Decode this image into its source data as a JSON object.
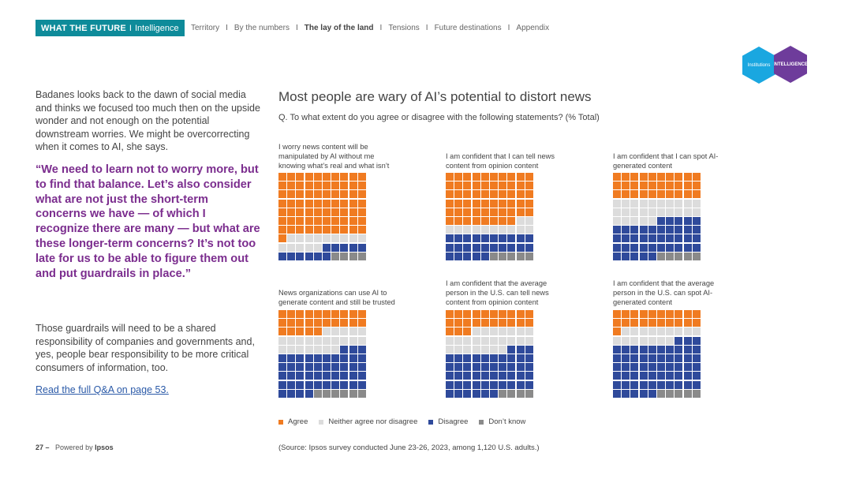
{
  "header": {
    "brand_bold": "WHAT THE FUTURE",
    "brand_sep": "I",
    "brand_sub": "Intelligence",
    "nav": [
      {
        "label": "Territory",
        "active": false
      },
      {
        "label": "By the numbers",
        "active": false
      },
      {
        "label": "The lay of the land",
        "active": true
      },
      {
        "label": "Tensions",
        "active": false
      },
      {
        "label": "Future destinations",
        "active": false
      },
      {
        "label": "Appendix",
        "active": false
      }
    ],
    "nav_sep": "I",
    "hex_left": "Institutions",
    "hex_right": "INTELLIGENCE"
  },
  "left": {
    "intro": "Badanes looks back to the dawn of social media and thinks we focused too much then on the upside wonder and not enough on the potential downstream worries. We might be overcorrecting when it comes to AI, she says.",
    "quote": "“We need to learn not to worry more, but to find that balance. Let’s also consider what are not just the short-term concerns we have — of which I recognize there are many — but what are these longer-term concerns? It’s not too late for us to be able to figure them out and put guardrails in place.”",
    "outro": "Those guardrails will need to be a shared responsibility of companies and governments and, yes, people bear responsibility to be more critical consumers of information, too.",
    "link": "Read the full Q&A on page 53."
  },
  "footer": {
    "page": "27 –",
    "powered": "Powered by",
    "brand": "Ipsos",
    "source": "(Source: Ipsos survey conducted June 23-26, 2023, among 1,120 U.S. adults.)"
  },
  "colors": {
    "agree": "#f07b21",
    "neither": "#dcdcdc",
    "disagree": "#2f4a9b",
    "dontknow": "#8a8a8a",
    "brand": "#0e8b9a",
    "quote": "#7b2d8e"
  },
  "chart_data": {
    "type": "waffle",
    "title": "Most people are wary of AI’s potential to distort news",
    "question": "Q. To what extent do you agree or disagree with the following statements? (% Total)",
    "legend": [
      "Agree",
      "Neither agree nor disagree",
      "Disagree",
      "Don’t know"
    ],
    "units": "percent of respondents (each square = 1%)",
    "panels": [
      {
        "label": "I worry news content will be manipulated by AI without me knowing what’s real and what isn’t",
        "values": [
          71,
          14,
          11,
          4
        ]
      },
      {
        "label": "I am confident that I can tell news content from opinion content",
        "values": [
          58,
          12,
          25,
          5
        ]
      },
      {
        "label": "I am confident that I can spot AI-generated content",
        "values": [
          30,
          25,
          40,
          5
        ]
      },
      {
        "label": "News organizations can use AI to generate content and still be trusted",
        "values": [
          25,
          22,
          47,
          6
        ]
      },
      {
        "label": "I am confident that the average person in the U.S. can tell news content from opinion content",
        "values": [
          23,
          24,
          49,
          4
        ]
      },
      {
        "label": "I am confident that the average person in the U.S. can spot AI-generated content",
        "values": [
          21,
          16,
          58,
          5
        ]
      }
    ]
  }
}
